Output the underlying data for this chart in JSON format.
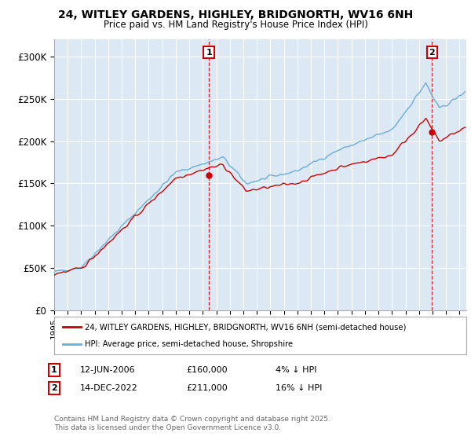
{
  "title_line1": "24, WITLEY GARDENS, HIGHLEY, BRIDGNORTH, WV16 6NH",
  "title_line2": "Price paid vs. HM Land Registry's House Price Index (HPI)",
  "background_color": "#ffffff",
  "plot_bg_color": "#dce9f5",
  "grid_color": "#ffffff",
  "red_color": "#cc0000",
  "blue_color": "#6aadd5",
  "sale1_date_x": 2006.45,
  "sale1_price": 160000,
  "sale2_date_x": 2022.96,
  "sale2_price": 211000,
  "xmin": 1995,
  "xmax": 2025.5,
  "ymin": 0,
  "ymax": 320000,
  "yticks": [
    0,
    50000,
    100000,
    150000,
    200000,
    250000,
    300000
  ],
  "ytick_labels": [
    "£0",
    "£50K",
    "£100K",
    "£150K",
    "£200K",
    "£250K",
    "£300K"
  ],
  "legend_line1": "24, WITLEY GARDENS, HIGHLEY, BRIDGNORTH, WV16 6NH (semi-detached house)",
  "legend_line2": "HPI: Average price, semi-detached house, Shropshire",
  "footer": "Contains HM Land Registry data © Crown copyright and database right 2025.\nThis data is licensed under the Open Government Licence v3.0.",
  "xticks": [
    1995,
    1996,
    1997,
    1998,
    1999,
    2000,
    2001,
    2002,
    2003,
    2004,
    2005,
    2006,
    2007,
    2008,
    2009,
    2010,
    2011,
    2012,
    2013,
    2014,
    2015,
    2016,
    2017,
    2018,
    2019,
    2020,
    2021,
    2022,
    2023,
    2024,
    2025
  ]
}
